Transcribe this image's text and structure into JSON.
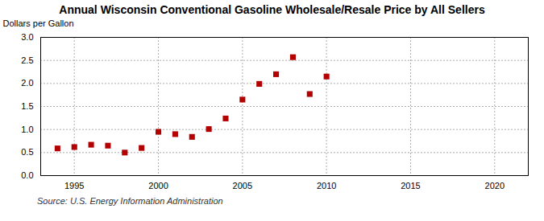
{
  "chart_data": {
    "type": "scatter",
    "title": "Annual Wisconsin Conventional Gasoline Wholesale/Resale Price by All Sellers",
    "ylabel": "Dollars per Gallon",
    "source": "Source: U.S. Energy Information Administration",
    "x": [
      1994,
      1995,
      1996,
      1997,
      1998,
      1999,
      2000,
      2001,
      2002,
      2003,
      2004,
      2005,
      2006,
      2007,
      2008,
      2009,
      2010
    ],
    "values": [
      0.59,
      0.62,
      0.67,
      0.65,
      0.5,
      0.6,
      0.95,
      0.9,
      0.84,
      1.01,
      1.24,
      1.65,
      1.99,
      2.2,
      2.57,
      1.77,
      2.15
    ],
    "color": "#b30000",
    "marker": "square",
    "xlim": [
      1993,
      2022
    ],
    "ylim": [
      0.0,
      3.0
    ],
    "xticks": [
      1995,
      2000,
      2005,
      2010,
      2015,
      2020
    ],
    "yticks": [
      {
        "value": 0.0,
        "label": "0.0"
      },
      0.5,
      {
        "value": 1.0,
        "label": "1.0"
      },
      1.5,
      {
        "value": 2.0,
        "label": "2.0"
      },
      2.5,
      {
        "value": 3.0,
        "label": "3.0"
      }
    ],
    "grid": true
  }
}
